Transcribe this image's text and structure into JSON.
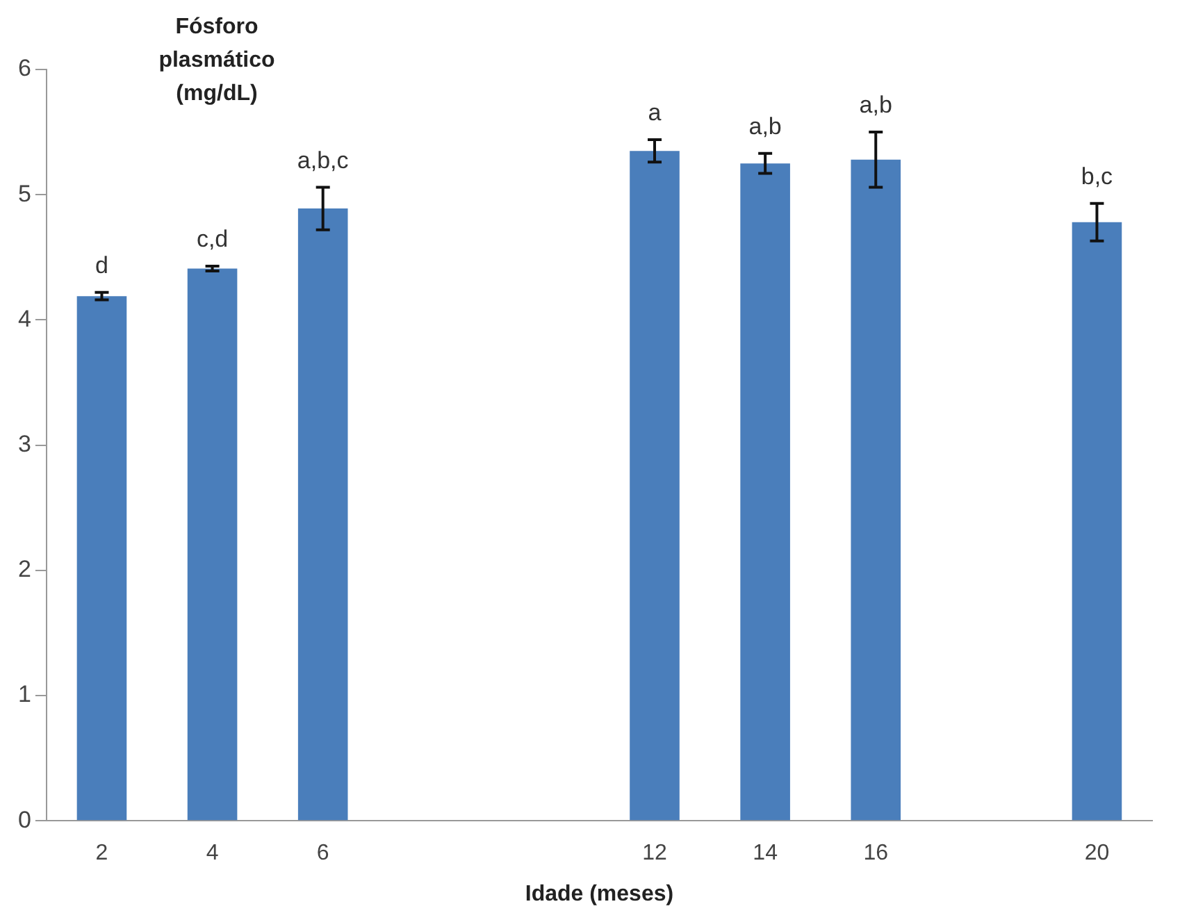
{
  "chart_data": {
    "type": "bar",
    "ylabel": "Fósforo plasmático (mg/dL)",
    "xlabel": "Idade (meses)",
    "categories": [
      "2",
      "4",
      "6",
      null,
      null,
      "12",
      "14",
      "16",
      null,
      "20"
    ],
    "values": [
      4.19,
      4.41,
      4.89,
      null,
      null,
      5.35,
      5.25,
      5.28,
      null,
      4.78
    ],
    "errors": [
      0.03,
      0.02,
      0.17,
      null,
      null,
      0.09,
      0.08,
      0.22,
      null,
      0.15
    ],
    "color": "#4a7ebb",
    "ylim": [
      0,
      6
    ],
    "yticks": [
      0,
      1,
      2,
      3,
      4,
      5,
      6
    ],
    "grid": false,
    "annotations": [
      {
        "text": "d",
        "x": "2",
        "y": 4.22
      },
      {
        "text": "c,d",
        "x": "4",
        "y": 4.43
      },
      {
        "text": "a,b,c",
        "x": "6",
        "y": 5.06
      },
      {
        "text": "a",
        "x": "12",
        "y": 5.44
      },
      {
        "text": "a,b",
        "x": "14",
        "y": 5.33
      },
      {
        "text": "a,b",
        "x": "16",
        "y": 5.5
      },
      {
        "text": "b,c",
        "x": "20",
        "y": 4.93
      }
    ]
  }
}
